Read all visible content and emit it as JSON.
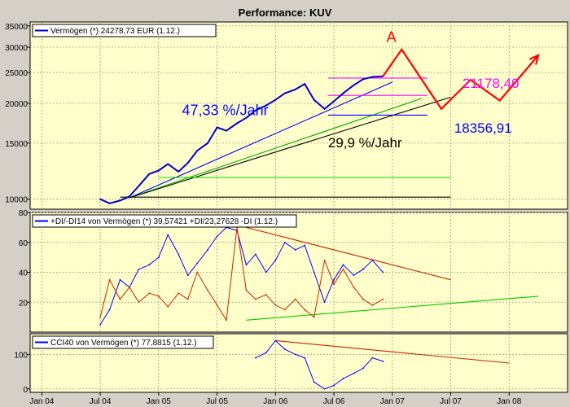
{
  "chart_data": [
    {
      "panel": "price",
      "type": "line",
      "title": "Performance: KUV",
      "legend": "Vermögen (*) 24278,73 EUR (1.12.)",
      "y_scale": "log",
      "ylim": [
        9300,
        36000
      ],
      "y_ticks": [
        10000,
        15000,
        20000,
        25000,
        30000,
        35000
      ],
      "y_tick_labels": [
        "10000",
        "15000",
        "20000",
        "25000",
        "30000",
        "35000"
      ],
      "series": [
        {
          "name": "Vermögen",
          "color": "#0000cc",
          "x": [
            2004.5,
            2004.58,
            2004.67,
            2004.75,
            2004.83,
            2004.92,
            2005.0,
            2005.08,
            2005.17,
            2005.25,
            2005.33,
            2005.42,
            2005.5,
            2005.58,
            2005.67,
            2005.75,
            2005.83,
            2005.92,
            2006.0,
            2006.08,
            2006.17,
            2006.25,
            2006.33,
            2006.42,
            2006.5,
            2006.58,
            2006.67,
            2006.75,
            2006.83,
            2006.92
          ],
          "values": [
            10000,
            9700,
            9900,
            10200,
            11000,
            12000,
            12300,
            12900,
            12200,
            13000,
            14200,
            15000,
            16800,
            16400,
            17300,
            18000,
            19000,
            19700,
            20500,
            21500,
            22100,
            23000,
            20500,
            19200,
            20300,
            21500,
            22800,
            23800,
            24200,
            24300
          ]
        }
      ],
      "annotations": [
        {
          "text": "47,33 %/Jahr",
          "color": "#0000ff"
        },
        {
          "text": "29,9 %/Jahr",
          "color": "#000000"
        },
        {
          "text": "A",
          "color": "#ff0000"
        },
        {
          "text": "21178,40",
          "color": "#ff00ff"
        },
        {
          "text": "18356,91",
          "color": "#0000ff"
        }
      ],
      "trendlines": [
        {
          "name": "blue channel",
          "color": "#0000ff",
          "from": [
            2004.75,
            10100
          ],
          "to": [
            2007.0,
            23300
          ]
        },
        {
          "name": "green support",
          "color": "#00aa00",
          "from": [
            2004.75,
            10100
          ],
          "to": [
            2007.25,
            20700
          ]
        },
        {
          "name": "black support",
          "color": "#000000",
          "from": [
            2004.75,
            10100
          ],
          "to": [
            2007.5,
            20900
          ]
        },
        {
          "name": "green flat",
          "color": "#00dd00",
          "from": [
            2005.0,
            11700
          ],
          "to": [
            2007.5,
            11700
          ]
        },
        {
          "name": "black flat",
          "color": "#000000",
          "from": [
            2004.67,
            10150
          ],
          "to": [
            2007.5,
            10150
          ]
        }
      ],
      "levels": [
        {
          "name": "magenta target",
          "color": "#ff00ff",
          "value": 24000
        },
        {
          "name": "magenta support",
          "color": "#ff00ff",
          "value": 21178.4
        },
        {
          "name": "blue support",
          "color": "#0000ff",
          "value": 18356.91
        }
      ],
      "forecast_path": {
        "color": "#ff0000",
        "x": [
          2006.92,
          2007.08,
          2007.42,
          2007.67,
          2007.92,
          2008.25
        ],
        "values": [
          24300,
          29500,
          19200,
          23700,
          20400,
          28300
        ]
      }
    },
    {
      "panel": "dmi",
      "type": "line",
      "legend": "+DI/-DI14 von Vermögen (*) 39,57421 +DI/23,27628 -DI (1.12.)",
      "ylim": [
        0,
        80
      ],
      "y_ticks": [
        20,
        40,
        60,
        80
      ],
      "y_tick_labels": [
        "20",
        "40",
        "60",
        "80"
      ],
      "series": [
        {
          "name": "+DI",
          "color": "#0000ff",
          "x": [
            2004.5,
            2004.58,
            2004.67,
            2004.75,
            2004.83,
            2004.92,
            2005.0,
            2005.08,
            2005.17,
            2005.25,
            2005.33,
            2005.42,
            2005.5,
            2005.58,
            2005.67,
            2005.75,
            2005.83,
            2005.92,
            2006.0,
            2006.08,
            2006.17,
            2006.25,
            2006.33,
            2006.42,
            2006.5,
            2006.58,
            2006.67,
            2006.75,
            2006.83,
            2006.92
          ],
          "values": [
            5,
            15,
            35,
            30,
            42,
            45,
            50,
            65,
            52,
            38,
            46,
            55,
            64,
            70,
            68,
            45,
            52,
            40,
            48,
            60,
            55,
            58,
            40,
            20,
            35,
            45,
            38,
            42,
            48,
            40
          ]
        },
        {
          "name": "-DI",
          "color": "#cc2200",
          "x": [
            2004.5,
            2004.58,
            2004.67,
            2004.75,
            2004.83,
            2004.92,
            2005.0,
            2005.08,
            2005.17,
            2005.25,
            2005.33,
            2005.42,
            2005.5,
            2005.58,
            2005.67,
            2005.75,
            2005.83,
            2005.92,
            2006.0,
            2006.08,
            2006.17,
            2006.25,
            2006.33,
            2006.42,
            2006.5,
            2006.58,
            2006.67,
            2006.75,
            2006.83,
            2006.92
          ],
          "values": [
            10,
            35,
            22,
            30,
            20,
            26,
            24,
            17,
            26,
            22,
            40,
            28,
            18,
            8,
            70,
            28,
            22,
            25,
            18,
            15,
            22,
            15,
            10,
            48,
            32,
            42,
            30,
            22,
            18,
            22
          ]
        }
      ],
      "trendlines": [
        {
          "name": "red resistance",
          "color": "#cc2200",
          "from": [
            2005.75,
            70
          ],
          "to": [
            2007.5,
            35
          ]
        },
        {
          "name": "green support",
          "color": "#00cc00",
          "from": [
            2005.75,
            8
          ],
          "to": [
            2008.25,
            24
          ]
        }
      ]
    },
    {
      "panel": "cci",
      "type": "line",
      "legend": "CCI40 von Vermögen (*) 77,8815 (1.12.)",
      "ylim": [
        -10,
        160
      ],
      "y_ticks": [
        0,
        100
      ],
      "y_tick_labels": [
        "0",
        "100"
      ],
      "series": [
        {
          "name": "CCI40",
          "color": "#0000ff",
          "x": [
            2005.83,
            2005.92,
            2006.0,
            2006.08,
            2006.17,
            2006.25,
            2006.33,
            2006.42,
            2006.5,
            2006.58,
            2006.67,
            2006.75,
            2006.83,
            2006.92
          ],
          "values": [
            90,
            105,
            140,
            115,
            100,
            90,
            20,
            0,
            10,
            30,
            45,
            60,
            90,
            80
          ]
        }
      ],
      "trendlines": [
        {
          "name": "red resistance",
          "color": "#cc2200",
          "from": [
            2006.0,
            140
          ],
          "to": [
            2008.0,
            75
          ]
        }
      ]
    }
  ],
  "x_axis": {
    "range": [
      2003.9,
      2008.5
    ],
    "ticks": [
      2004.0,
      2004.5,
      2005.0,
      2005.5,
      2006.0,
      2006.5,
      2007.0,
      2007.5,
      2008.0
    ],
    "tick_labels": [
      "Jan 04",
      "Jul 04",
      "Jan 05",
      "Jul 05",
      "Jan 06",
      "Jul 06",
      "Jan 07",
      "Jul 07",
      "Jan 08"
    ]
  },
  "colors": {
    "window_bg": "#d4d0c8",
    "plot_bg": "#ffffcc",
    "grid": "#a0a080"
  }
}
